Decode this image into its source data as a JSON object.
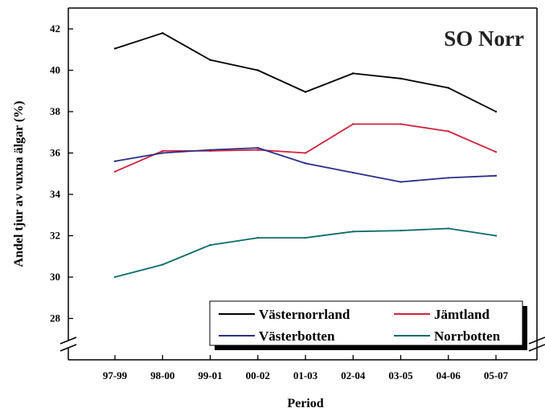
{
  "chart_data": {
    "type": "line",
    "title": "SO Norr",
    "xlabel": "Period",
    "ylabel": "Andel tjur av vuxna älgar (%)",
    "categories": [
      "97-99",
      "98-00",
      "99-01",
      "00-02",
      "01-03",
      "02-04",
      "03-05",
      "04-06",
      "05-07"
    ],
    "yticks": [
      28,
      30,
      32,
      34,
      36,
      38,
      40,
      42
    ],
    "ylim": [
      27,
      43
    ],
    "axis_break": true,
    "grid": false,
    "legend_position": "bottom-right",
    "series": [
      {
        "name": "Västernorrland",
        "color": "#000000",
        "values": [
          41.05,
          41.8,
          40.5,
          40.0,
          38.95,
          39.85,
          39.6,
          39.15,
          38.0
        ]
      },
      {
        "name": "Jämtland",
        "color": "#d0223c",
        "values": [
          35.1,
          36.1,
          36.1,
          36.15,
          36.0,
          37.4,
          37.4,
          37.05,
          36.05
        ]
      },
      {
        "name": "Västerbotten",
        "color": "#2b2f8a",
        "values": [
          35.6,
          36.0,
          36.15,
          36.25,
          35.5,
          35.05,
          34.6,
          34.8,
          34.9
        ]
      },
      {
        "name": "Norrbotten",
        "color": "#0d6b6b",
        "values": [
          30.0,
          30.6,
          31.55,
          31.9,
          31.9,
          32.2,
          32.25,
          32.35,
          32.0
        ]
      }
    ]
  }
}
